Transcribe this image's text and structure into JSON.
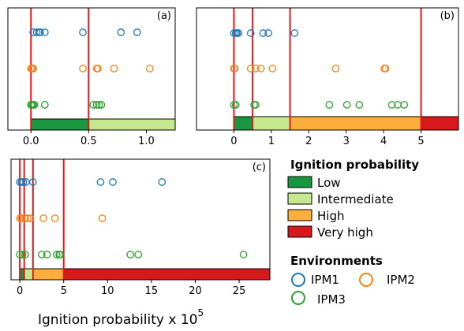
{
  "chart_data": [
    {
      "panel": "(a)",
      "type": "scatter",
      "xlim": [
        -0.2,
        1.25
      ],
      "xticks": [
        0.0,
        0.5,
        1.0
      ],
      "tick_labels": [
        "0.0",
        "0.5",
        "1.0"
      ],
      "thresholds": [
        0.0,
        0.5
      ],
      "class_bands": [
        {
          "class": "Low",
          "from": 0.0,
          "to": 0.5
        },
        {
          "class": "Intermediate",
          "from": 0.5,
          "to": 1.25
        }
      ],
      "series": [
        {
          "name": "IPM1",
          "values": [
            0.02,
            0.05,
            0.07,
            0.08,
            0.12,
            0.45,
            0.78,
            0.92
          ]
        },
        {
          "name": "IPM2",
          "values": [
            0.0,
            0.01,
            0.02,
            0.45,
            0.57,
            0.58,
            0.72,
            1.03
          ]
        },
        {
          "name": "IPM3",
          "values": [
            0.0,
            0.01,
            0.02,
            0.03,
            0.12,
            0.54,
            0.57,
            0.59,
            0.61
          ]
        }
      ]
    },
    {
      "panel": "(b)",
      "type": "scatter",
      "xlim": [
        -1.0,
        6.0
      ],
      "xticks": [
        0,
        1,
        2,
        3,
        4,
        5
      ],
      "tick_labels": [
        "0",
        "1",
        "2",
        "3",
        "4",
        "5"
      ],
      "thresholds": [
        0.0,
        0.5,
        1.5,
        5.0
      ],
      "class_bands": [
        {
          "class": "Low",
          "from": 0.0,
          "to": 0.5
        },
        {
          "class": "Intermediate",
          "from": 0.5,
          "to": 1.5
        },
        {
          "class": "High",
          "from": 1.5,
          "to": 5.0
        },
        {
          "class": "Very high",
          "from": 5.0,
          "to": 6.0
        }
      ],
      "series": [
        {
          "name": "IPM1",
          "values": [
            0.0,
            0.05,
            0.08,
            0.12,
            0.45,
            0.78,
            0.92,
            1.62
          ]
        },
        {
          "name": "IPM2",
          "values": [
            0.0,
            0.02,
            0.45,
            0.58,
            0.72,
            1.03,
            2.72,
            4.02,
            4.05
          ]
        },
        {
          "name": "IPM3",
          "values": [
            0.0,
            0.05,
            0.54,
            0.58,
            2.55,
            3.02,
            3.35,
            4.22,
            4.38,
            4.55
          ]
        }
      ]
    },
    {
      "panel": "(c)",
      "type": "scatter",
      "xlim": [
        -1.0,
        28.5
      ],
      "xticks": [
        0,
        5,
        10,
        15,
        20,
        25
      ],
      "tick_labels": [
        "0",
        "5",
        "10",
        "15",
        "20",
        "25"
      ],
      "thresholds": [
        0.0,
        0.5,
        1.5,
        5.0
      ],
      "class_bands": [
        {
          "class": "Low",
          "from": 0.0,
          "to": 0.5
        },
        {
          "class": "Intermediate",
          "from": 0.5,
          "to": 1.5
        },
        {
          "class": "High",
          "from": 1.5,
          "to": 5.0
        },
        {
          "class": "Very high",
          "from": 5.0,
          "to": 28.5
        }
      ],
      "series": [
        {
          "name": "IPM1",
          "values": [
            0.0,
            0.2,
            0.4,
            0.7,
            1.5,
            9.2,
            10.6,
            16.2
          ]
        },
        {
          "name": "IPM2",
          "values": [
            0.0,
            0.2,
            0.6,
            0.9,
            1.2,
            2.7,
            4.0,
            9.4
          ]
        },
        {
          "name": "IPM3",
          "values": [
            0.0,
            0.3,
            0.6,
            2.5,
            3.1,
            4.2,
            4.5,
            4.6,
            12.6,
            13.5,
            25.5
          ]
        }
      ]
    }
  ],
  "xlabel": "Ignition probability x 10",
  "xlabel_exponent": "5",
  "legend": {
    "probability_title": "Ignition probability",
    "classes": [
      {
        "label": "Low",
        "color": "#1a9641"
      },
      {
        "label": "Intermediate",
        "color": "#c6e88f"
      },
      {
        "label": "High",
        "color": "#fdae3d"
      },
      {
        "label": "Very high",
        "color": "#d7191c"
      }
    ],
    "environment_title": "Environments",
    "environments": [
      {
        "label": "IPM1",
        "color": "#1f77b4"
      },
      {
        "label": "IPM2",
        "color": "#ff7f0e"
      },
      {
        "label": "IPM3",
        "color": "#2ca02c"
      }
    ]
  },
  "colors": {
    "threshold_line": "#e31a1c",
    "axis": "#000000"
  }
}
